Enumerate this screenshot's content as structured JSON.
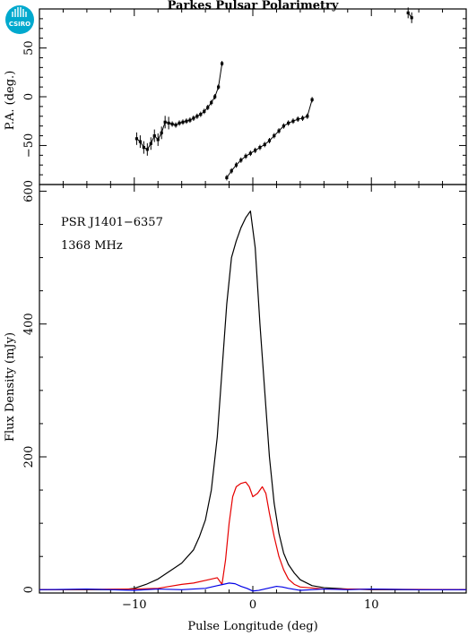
{
  "title": "Parkes Pulsar Polarimetry",
  "logo": {
    "text": "CSIRO",
    "color": "#00a9ce"
  },
  "chart_data": [
    {
      "type": "scatter",
      "panel": "position-angle",
      "ylabel": "P.A. (deg.)",
      "xlim": [
        -18,
        18
      ],
      "ylim": [
        -90,
        90
      ],
      "yticks": [
        -50,
        0,
        50
      ],
      "segments": [
        {
          "x": [
            -9.8,
            -9.5,
            -9.2,
            -8.9,
            -8.6,
            -8.3,
            -8.0,
            -7.7,
            -7.4,
            -7.1,
            -6.8,
            -6.5,
            -6.2,
            -5.9,
            -5.6,
            -5.3,
            -5.0,
            -4.7,
            -4.4,
            -4.1,
            -3.8,
            -3.5,
            -3.2,
            -2.9,
            -2.6
          ],
          "y": [
            -43,
            -46,
            -52,
            -54,
            -48,
            -40,
            -44,
            -37,
            -26,
            -27,
            -28,
            -29,
            -27,
            -26,
            -25,
            -24,
            -22,
            -20,
            -18,
            -15,
            -11,
            -6,
            0,
            10,
            34
          ]
        },
        {
          "x": [
            -2.2,
            -1.8,
            -1.4,
            -1.0,
            -0.6,
            -0.2,
            0.2,
            0.6,
            1.0,
            1.4,
            1.8,
            2.2,
            2.6,
            3.0,
            3.4,
            3.8,
            4.2,
            4.6,
            5.0
          ],
          "y": [
            -83,
            -76,
            -70,
            -65,
            -61,
            -58,
            -55,
            -52,
            -49,
            -45,
            -40,
            -35,
            -30,
            -27,
            -25,
            -23,
            -22,
            -20,
            -3
          ]
        },
        {
          "x": [
            13.1,
            13.4
          ],
          "y": [
            86,
            81
          ]
        }
      ]
    },
    {
      "type": "line",
      "panel": "flux-density",
      "xlabel": "Pulse Longitude (deg)",
      "ylabel": "Flux Density (mJy)",
      "xlim": [
        -18,
        18
      ],
      "ylim": [
        -5,
        610
      ],
      "xticks": [
        -10,
        0,
        10
      ],
      "yticks": [
        0,
        200,
        400,
        600
      ],
      "annotations": [
        "PSR J1401−6357",
        "1368 MHz"
      ],
      "series": [
        {
          "color": "#000000",
          "x": [
            -18,
            -14,
            -11,
            -10,
            -9,
            -8,
            -7,
            -6,
            -5,
            -4.5,
            -4,
            -3.5,
            -3,
            -2.6,
            -2.2,
            -1.8,
            -1.4,
            -1,
            -0.6,
            -0.2,
            0.2,
            0.6,
            1,
            1.4,
            1.8,
            2.2,
            2.6,
            3,
            3.5,
            4,
            5,
            6,
            8,
            10,
            14,
            18
          ],
          "y": [
            0,
            0,
            0,
            2,
            8,
            16,
            28,
            40,
            60,
            80,
            105,
            150,
            230,
            330,
            430,
            500,
            525,
            545,
            560,
            570,
            515,
            400,
            300,
            200,
            130,
            85,
            55,
            38,
            25,
            15,
            6,
            3,
            1,
            0,
            0,
            0
          ]
        },
        {
          "color": "#e60000",
          "x": [
            -18,
            -10,
            -8,
            -7,
            -6,
            -5,
            -4,
            -3,
            -2.6,
            -2.3,
            -2,
            -1.7,
            -1.4,
            -1,
            -0.6,
            -0.3,
            0,
            0.4,
            0.8,
            1.1,
            1.4,
            1.8,
            2.2,
            2.6,
            3,
            3.5,
            4,
            6,
            18
          ],
          "y": [
            0,
            1,
            2,
            5,
            8,
            10,
            14,
            18,
            8,
            45,
            100,
            140,
            155,
            160,
            162,
            155,
            140,
            145,
            155,
            145,
            115,
            80,
            50,
            30,
            16,
            8,
            4,
            1,
            0
          ]
        },
        {
          "color": "#0000e6",
          "x": [
            -18,
            -14,
            -10,
            -8,
            -6,
            -4,
            -3,
            -2.5,
            -2,
            -1.5,
            -1,
            -0.5,
            0,
            0.5,
            1,
            1.5,
            2,
            2.5,
            3,
            4,
            5,
            6,
            8,
            10,
            14,
            18
          ],
          "y": [
            0,
            1,
            -1,
            1,
            0,
            2,
            6,
            8,
            10,
            9,
            5,
            2,
            -2,
            -1,
            1,
            3,
            5,
            4,
            2,
            -1,
            0,
            1,
            0,
            1,
            0,
            0
          ]
        }
      ]
    }
  ]
}
